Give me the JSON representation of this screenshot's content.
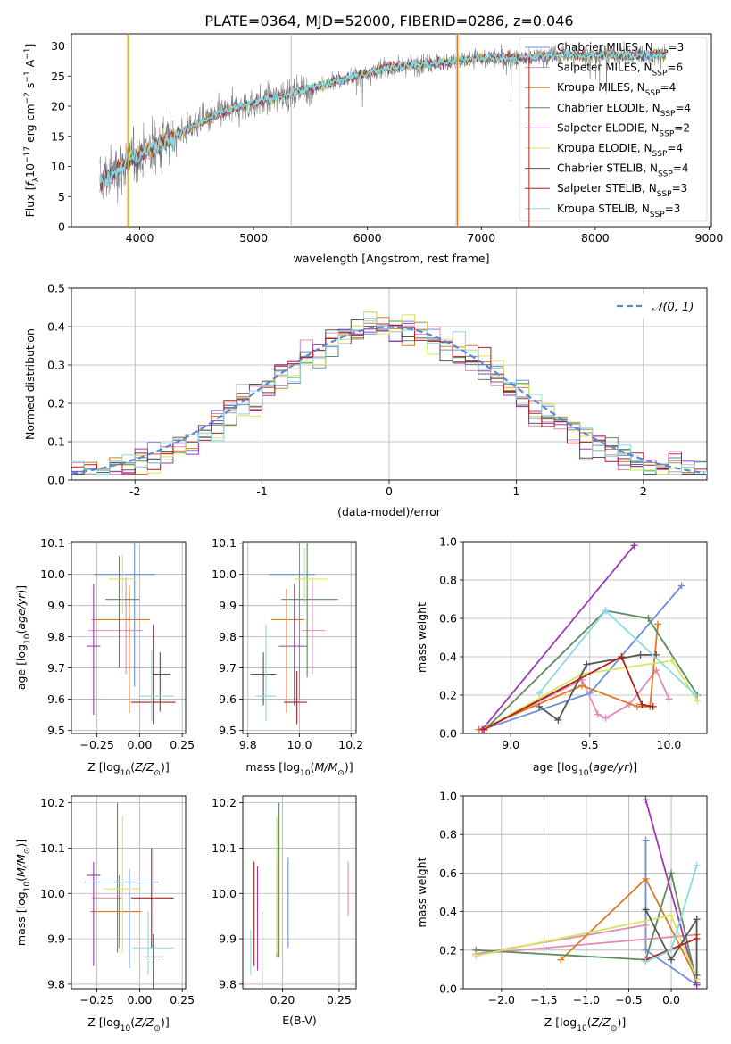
{
  "figure": {
    "title": "PLATE=0364, MJD=52000, FIBERID=0286, z=0.046"
  },
  "colors": [
    "#6a8fdc",
    "#e28bb8",
    "#dd7a22",
    "#5f8a62",
    "#9f38b5",
    "#d6e85a",
    "#555555",
    "#b11f1f",
    "#88dbe0"
  ],
  "chart_data": [
    {
      "id": "spectrum",
      "type": "line",
      "xlabel": "wavelength [Angstrom, rest frame]",
      "ylabel": "Flux [f_λ10^-17 erg cm^-2 s^-1 A^-1]",
      "xlim": [
        3400,
        9020
      ],
      "ylim": [
        0,
        32
      ],
      "xticks": [
        4000,
        5000,
        6000,
        7000,
        8000,
        9000
      ],
      "yticks": [
        0,
        5,
        10,
        15,
        20,
        25,
        30
      ],
      "legend_position": "upper-right",
      "series": [
        {
          "name": "Chabrier MILES, N_SSP=3"
        },
        {
          "name": "Salpeter MILES, N_SSP=6"
        },
        {
          "name": "Kroupa MILES, N_SSP=4"
        },
        {
          "name": "Chabrier ELODIE, N_SSP=4"
        },
        {
          "name": "Salpeter ELODIE, N_SSP=2"
        },
        {
          "name": "Kroupa ELODIE, N_SSP=4"
        },
        {
          "name": "Chabrier STELIB, N_SSP=4"
        },
        {
          "name": "Salpeter STELIB, N_SSP=3"
        },
        {
          "name": "Kroupa STELIB, N_SSP=3"
        }
      ],
      "data_envelope": {
        "x": [
          3650,
          3800,
          3950,
          4100,
          4300,
          4500,
          4800,
          5000,
          5200,
          5400,
          5600,
          5800,
          6000,
          6200,
          6500,
          6800,
          7000,
          7200,
          7400,
          7600,
          8000,
          8400,
          8600
        ],
        "y": [
          7.5,
          9.5,
          11.5,
          13,
          15,
          17,
          19.5,
          20.5,
          21.5,
          22.5,
          23.5,
          24.5,
          25.5,
          26.5,
          27,
          27.5,
          28,
          28,
          28,
          28.5,
          28.5,
          28.5,
          28.5
        ]
      }
    },
    {
      "id": "residuals",
      "type": "step",
      "xlabel": "(data-model)/error",
      "ylabel": "Normed distribution",
      "xlim": [
        -2.5,
        2.5
      ],
      "ylim": [
        0,
        0.5
      ],
      "xticks": [
        -2,
        -1,
        0,
        1,
        2
      ],
      "yticks": [
        0.0,
        0.1,
        0.2,
        0.3,
        0.4,
        0.5
      ],
      "grid": true,
      "legend_position": "upper-right",
      "reference_curve": {
        "name": "𝒩(0, 1)",
        "mean": 0,
        "sigma": 1,
        "peak": 0.399
      }
    },
    {
      "id": "age_vs_Z",
      "type": "errorbar",
      "xlabel": "Z [log10(Z/Z⊙)]",
      "ylabel": "age  [log10(age/yr)]",
      "xlim": [
        -0.4,
        0.27
      ],
      "ylim": [
        9.49,
        10.105
      ],
      "xticks": [
        -0.25,
        0.0,
        0.25
      ],
      "xticklabels": [
        "−0.25",
        "0.00",
        "0.25"
      ],
      "yticks": [
        9.5,
        9.6,
        9.7,
        9.8,
        9.9,
        10.0,
        10.1
      ],
      "grid": true,
      "points": [
        {
          "x": -0.03,
          "y": 10.0,
          "xerr": [
            0.24,
            0.12
          ],
          "yerr": [
            0.36,
            0.1
          ]
        },
        {
          "x": -0.08,
          "y": 9.82,
          "xerr": [
            0.22,
            0.1
          ],
          "yerr": [
            0.14,
            0.17
          ]
        },
        {
          "x": -0.06,
          "y": 9.855,
          "xerr": [
            0.22,
            0.12
          ],
          "yerr": [
            0.3,
            0.11
          ]
        },
        {
          "x": -0.12,
          "y": 9.92,
          "xerr": [
            0.08,
            0.12
          ],
          "yerr": [
            0.22,
            0.14
          ]
        },
        {
          "x": -0.27,
          "y": 9.77,
          "xerr": [
            0.04,
            0.04
          ],
          "yerr": [
            0.22,
            0.2
          ]
        },
        {
          "x": -0.1,
          "y": 9.985,
          "xerr": [
            0.08,
            0.08
          ],
          "yerr": [
            0.11,
            0.08
          ]
        },
        {
          "x": 0.12,
          "y": 9.68,
          "xerr": [
            0.05,
            0.06
          ],
          "yerr": [
            0.12,
            0.07
          ]
        },
        {
          "x": 0.08,
          "y": 9.59,
          "xerr": [
            0.13,
            0.13
          ],
          "yerr": [
            0.07,
            0.25
          ]
        },
        {
          "x": 0.07,
          "y": 9.61,
          "xerr": [
            0.07,
            0.13
          ],
          "yerr": [
            0.08,
            0.15
          ]
        }
      ]
    },
    {
      "id": "age_vs_mass",
      "type": "errorbar",
      "xlabel": "mass [log10(M/M⊙)]",
      "xlim": [
        9.78,
        10.22
      ],
      "ylim": [
        9.49,
        10.105
      ],
      "xticks": [
        9.8,
        10.0,
        10.2
      ],
      "xticklabels": [
        "9.8",
        "10.0",
        "10.2"
      ],
      "yticks": [
        9.5,
        9.6,
        9.7,
        9.8,
        9.9,
        10.0,
        10.1
      ],
      "grid": true,
      "points": [
        {
          "x": 10.0,
          "y": 10.0,
          "xerr": [
            0.12,
            0.06
          ],
          "yerr": [
            0.4,
            0.1
          ]
        },
        {
          "x": 10.05,
          "y": 9.82,
          "xerr": [
            0.04,
            0.05
          ],
          "yerr": [
            0.14,
            0.17
          ]
        },
        {
          "x": 9.95,
          "y": 9.855,
          "xerr": [
            0.06,
            0.07
          ],
          "yerr": [
            0.3,
            0.1
          ]
        },
        {
          "x": 10.03,
          "y": 9.92,
          "xerr": [
            0.1,
            0.12
          ],
          "yerr": [
            0.25,
            0.18
          ]
        },
        {
          "x": 9.98,
          "y": 9.77,
          "xerr": [
            0.06,
            0.05
          ],
          "yerr": [
            0.19,
            0.2
          ]
        },
        {
          "x": 10.02,
          "y": 9.985,
          "xerr": [
            0.04,
            0.09
          ],
          "yerr": [
            0.08,
            0.1
          ]
        },
        {
          "x": 9.86,
          "y": 9.68,
          "xerr": [
            0.05,
            0.05
          ],
          "yerr": [
            0.1,
            0.07
          ]
        },
        {
          "x": 9.99,
          "y": 9.59,
          "xerr": [
            0.05,
            0.04
          ],
          "yerr": [
            0.07,
            0.1
          ]
        },
        {
          "x": 9.87,
          "y": 9.61,
          "xerr": [
            0.04,
            0.04
          ],
          "yerr": [
            0.08,
            0.23
          ]
        }
      ]
    },
    {
      "id": "weight_vs_age",
      "type": "line",
      "xlabel": "age  [log10(age/yr)]",
      "ylabel": "mass weight",
      "xlim": [
        8.7,
        10.24
      ],
      "ylim": [
        0,
        1
      ],
      "xticks": [
        9.0,
        9.5,
        10.0
      ],
      "xticklabels": [
        "9.0",
        "9.5",
        "10.0"
      ],
      "yticks": [
        0.0,
        0.2,
        0.4,
        0.6,
        0.8,
        1.0
      ],
      "grid": true,
      "series": [
        {
          "x": [
            8.82,
            9.5,
            10.08
          ],
          "y": [
            0.02,
            0.21,
            0.77
          ]
        },
        {
          "x": [
            8.85,
            9.45,
            9.55,
            9.6,
            9.75,
            9.92,
            10.0
          ],
          "y": [
            0.03,
            0.28,
            0.1,
            0.08,
            0.15,
            0.33,
            0.18
          ]
        },
        {
          "x": [
            8.8,
            9.45,
            9.8,
            9.88,
            9.93
          ],
          "y": [
            0.02,
            0.25,
            0.14,
            0.14,
            0.57
          ]
        },
        {
          "x": [
            8.85,
            9.6,
            9.87,
            10.18
          ],
          "y": [
            0.03,
            0.64,
            0.6,
            0.2
          ]
        },
        {
          "x": [
            8.82,
            9.78
          ],
          "y": [
            0.02,
            0.98
          ]
        },
        {
          "x": [
            8.85,
            9.45,
            10.02,
            10.18
          ],
          "y": [
            0.03,
            0.31,
            0.38,
            0.17
          ]
        },
        {
          "x": [
            9.18,
            9.3,
            9.48,
            9.82,
            9.92
          ],
          "y": [
            0.14,
            0.07,
            0.36,
            0.41,
            0.41
          ]
        },
        {
          "x": [
            8.83,
            9.7,
            9.83,
            9.9
          ],
          "y": [
            0.02,
            0.4,
            0.15,
            0.14
          ]
        },
        {
          "x": [
            9.18,
            9.6,
            10.17
          ],
          "y": [
            0.21,
            0.64,
            0.2
          ]
        }
      ]
    },
    {
      "id": "mass_vs_Z",
      "type": "errorbar",
      "xlabel": "Z [log10(Z/Z⊙)]",
      "ylabel": "mass [log10(M/M⊙)]",
      "xlim": [
        -0.4,
        0.27
      ],
      "ylim": [
        9.79,
        10.215
      ],
      "xticks": [
        -0.25,
        0.0,
        0.25
      ],
      "xticklabels": [
        "−0.25",
        "0.00",
        "0.25"
      ],
      "yticks": [
        9.8,
        9.9,
        10.0,
        10.1,
        10.2
      ],
      "grid": true,
      "points": [
        {
          "x": -0.06,
          "y": 10.025,
          "xerr": [
            0.26,
            0.17
          ],
          "yerr": [
            0.19,
            0.03
          ]
        },
        {
          "x": -0.15,
          "y": 9.99,
          "xerr": [
            0.13,
            0.05
          ],
          "yerr": [
            0.0,
            0.0
          ]
        },
        {
          "x": -0.12,
          "y": 9.96,
          "xerr": [
            0.17,
            0.13
          ],
          "yerr": [
            0.08,
            0.08
          ]
        },
        {
          "x": -0.13,
          "y": 9.87,
          "xerr": [
            0.0,
            0.0
          ],
          "yerr": [
            0.0,
            0.33
          ]
        },
        {
          "x": -0.27,
          "y": 10.04,
          "xerr": [
            0.04,
            0.04
          ],
          "yerr": [
            0.2,
            0.03
          ]
        },
        {
          "x": -0.1,
          "y": 10.01,
          "xerr": [
            0.11,
            0.11
          ],
          "yerr": [
            0.14,
            0.16
          ]
        },
        {
          "x": 0.08,
          "y": 9.86,
          "xerr": [
            0.06,
            0.06
          ],
          "yerr": [
            0.07,
            0.05
          ]
        },
        {
          "x": 0.07,
          "y": 9.99,
          "xerr": [
            0.12,
            0.13
          ],
          "yerr": [
            0.11,
            0.11
          ]
        },
        {
          "x": 0.05,
          "y": 9.88,
          "xerr": [
            0.09,
            0.15
          ],
          "yerr": [
            0.06,
            0.08
          ]
        }
      ]
    },
    {
      "id": "mass_vs_EBV",
      "type": "errorbar",
      "xlabel": "E(B-V)",
      "xlim": [
        0.165,
        0.265
      ],
      "ylim": [
        9.79,
        10.215
      ],
      "xticks": [
        0.2,
        0.25
      ],
      "xticklabels": [
        "0.20",
        "0.25"
      ],
      "yticks": [
        9.8,
        9.9,
        10.0,
        10.1,
        10.2
      ],
      "grid": true,
      "points": [
        {
          "x": 0.205,
          "y": 10.0,
          "yerr": [
            0.12,
            0.08
          ]
        },
        {
          "x": 0.258,
          "y": 9.95,
          "yerr": [
            0.0,
            0.12
          ]
        },
        {
          "x": 0.195,
          "y": 9.96,
          "yerr": [
            0.1,
            0.11
          ]
        },
        {
          "x": 0.197,
          "y": 10.02,
          "yerr": [
            0.16,
            0.18
          ]
        },
        {
          "x": 0.178,
          "y": 9.99,
          "yerr": [
            0.16,
            0.07
          ]
        },
        {
          "x": 0.195,
          "y": 10.05,
          "yerr": [
            0.18,
            0.12
          ]
        },
        {
          "x": 0.182,
          "y": 9.9,
          "yerr": [
            0.11,
            0.06
          ]
        },
        {
          "x": 0.175,
          "y": 9.99,
          "yerr": [
            0.15,
            0.08
          ]
        },
        {
          "x": 0.172,
          "y": 9.88,
          "yerr": [
            0.06,
            0.04
          ]
        }
      ]
    },
    {
      "id": "weight_vs_Z",
      "type": "line",
      "xlabel": "Z [log10(Z/Z⊙)]",
      "ylabel": "mass weight",
      "xlim": [
        -2.45,
        0.42
      ],
      "ylim": [
        0,
        1
      ],
      "xticks": [
        -2.0,
        -1.5,
        -1.0,
        -0.5,
        0.0
      ],
      "xticklabels": [
        "−2.0",
        "−1.5",
        "−1.0",
        "−0.5",
        "0.0"
      ],
      "yticks": [
        0.0,
        0.2,
        0.4,
        0.6,
        0.8,
        1.0
      ],
      "grid": true,
      "series": [
        {
          "x": [
            -0.3,
            -0.3,
            0.3
          ],
          "y": [
            0.77,
            0.2,
            0.02
          ]
        },
        {
          "x": [
            -0.3,
            -2.3,
            0.3,
            0.3
          ],
          "y": [
            0.33,
            0.18,
            0.28,
            0.36
          ]
        },
        {
          "x": [
            -1.3,
            -0.3,
            0.3,
            0.3
          ],
          "y": [
            0.15,
            0.57,
            0.05,
            0.28
          ]
        },
        {
          "x": [
            -2.3,
            -0.3,
            0.0,
            0.3
          ],
          "y": [
            0.2,
            0.15,
            0.6,
            0.03
          ]
        },
        {
          "x": [
            -0.3,
            0.3
          ],
          "y": [
            0.98,
            0.02
          ]
        },
        {
          "x": [
            -2.3,
            0.0,
            0.3
          ],
          "y": [
            0.17,
            0.38,
            0.05
          ]
        },
        {
          "x": [
            -0.3,
            0.0,
            0.3,
            0.3
          ],
          "y": [
            0.41,
            0.15,
            0.36,
            0.07
          ]
        },
        {
          "x": [
            -0.3,
            0.3
          ],
          "y": [
            0.15,
            0.26
          ]
        },
        {
          "x": [
            -0.3,
            0.0,
            0.3
          ],
          "y": [
            0.14,
            0.2,
            0.64
          ]
        }
      ]
    }
  ]
}
